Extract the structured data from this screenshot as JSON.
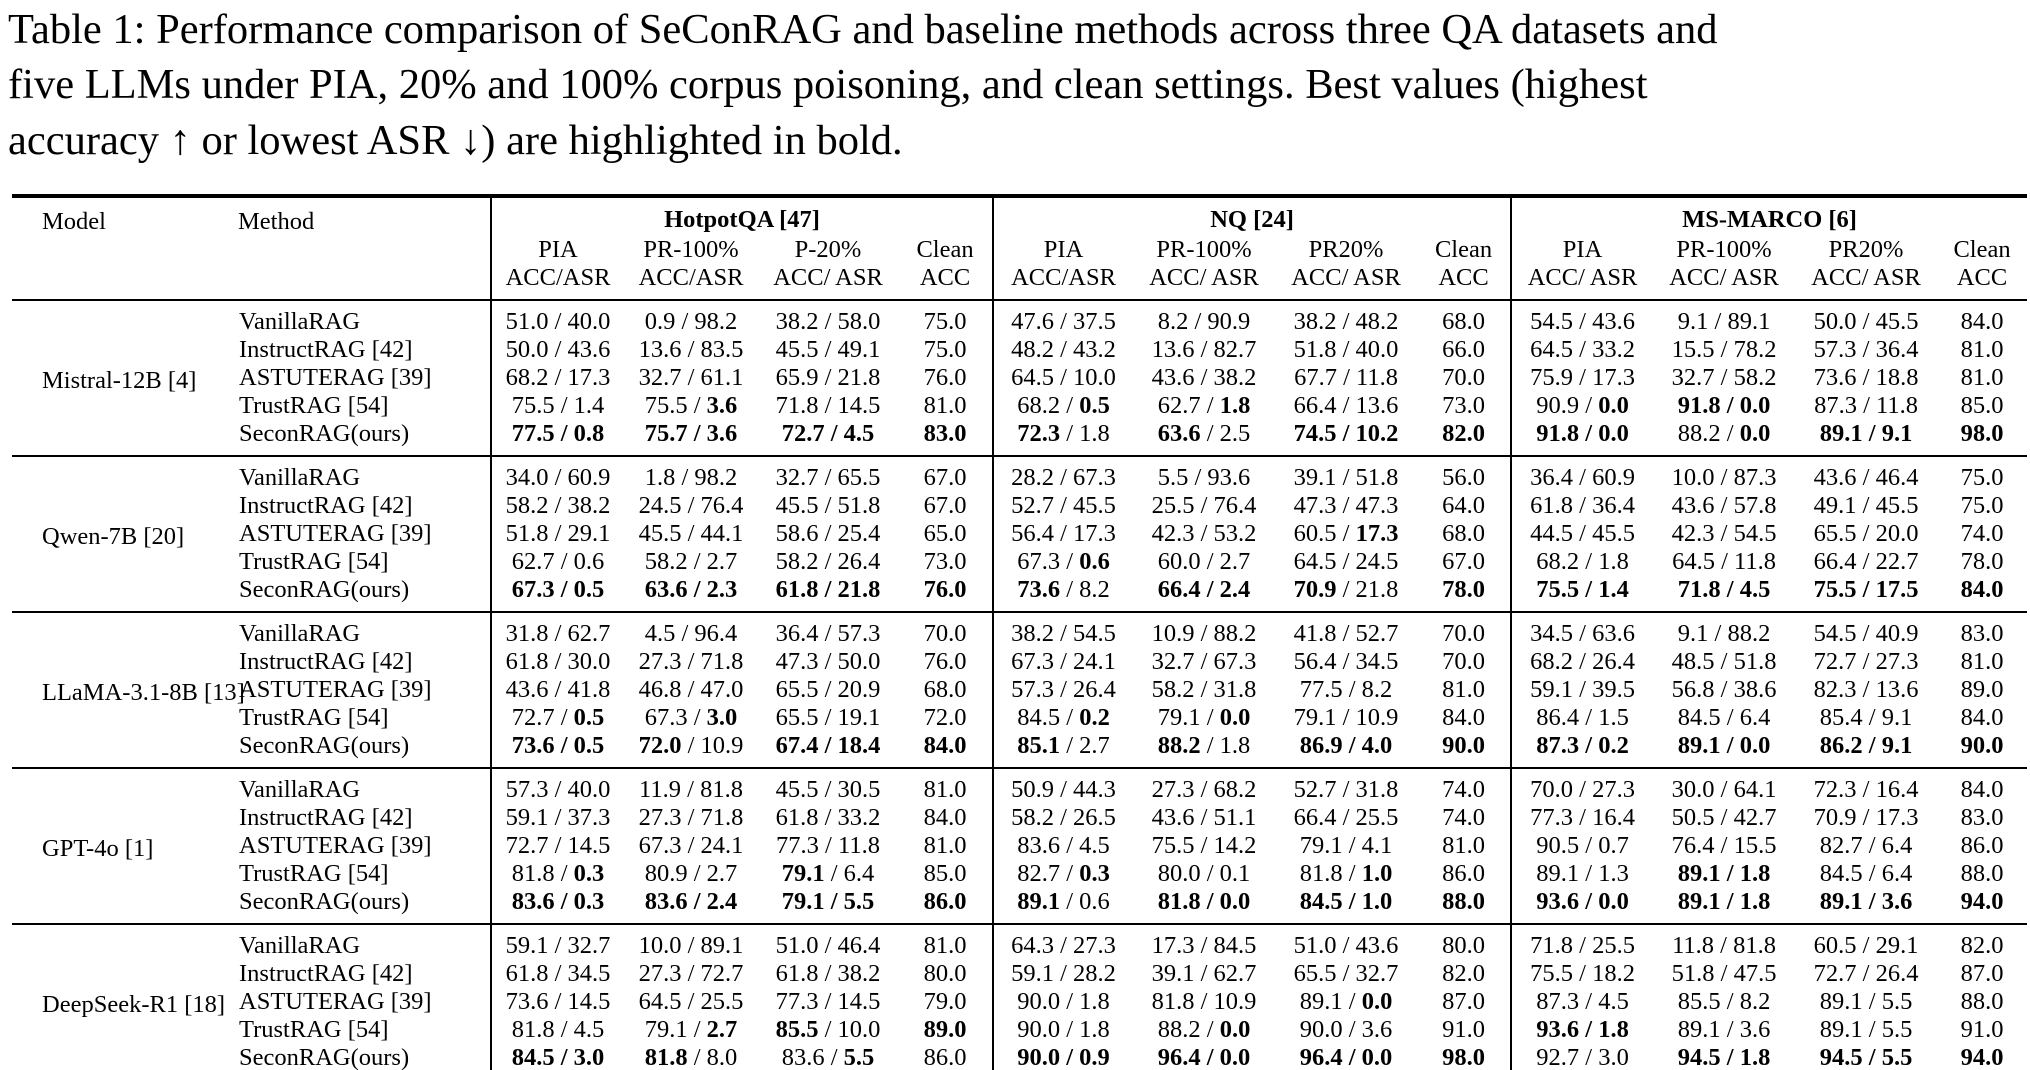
{
  "caption": {
    "line1": "Table 1: Performance comparison of SeConRAG and baseline methods across three QA datasets and",
    "line2": "five LLMs under PIA, 20% and 100% corpus poisoning, and clean settings. Best values (highest",
    "line3": "accuracy ↑ or lowest ASR ↓) are highlighted in bold."
  },
  "table": {
    "model_header": "Model",
    "method_header": "Method",
    "datasets": [
      {
        "name": "HotpotQA [47]",
        "cols": [
          [
            "PIA",
            "ACC/ASR"
          ],
          [
            "PR-100%",
            "ACC/ASR"
          ],
          [
            "P-20%",
            "ACC/ ASR"
          ],
          [
            "Clean",
            "ACC"
          ]
        ]
      },
      {
        "name": "NQ [24]",
        "cols": [
          [
            "PIA",
            "ACC/ASR"
          ],
          [
            "PR-100%",
            "ACC/ ASR"
          ],
          [
            "PR20%",
            "ACC/ ASR"
          ],
          [
            "Clean",
            "ACC"
          ]
        ]
      },
      {
        "name": "MS-MARCO [6]",
        "cols": [
          [
            "PIA",
            "ACC/ ASR"
          ],
          [
            "PR-100%",
            "ACC/ ASR"
          ],
          [
            "PR20%",
            "ACC/ ASR"
          ],
          [
            "Clean",
            "ACC"
          ]
        ]
      }
    ],
    "blocks": [
      {
        "model": "Mistral-12B [4]",
        "rows": [
          {
            "method": "VanillaRAG",
            "cells": [
              "51.0 / 40.0",
              "0.9 / 98.2",
              "38.2 / 58.0",
              "75.0",
              "47.6 / 37.5",
              "8.2 / 90.9",
              "38.2 / 48.2",
              "68.0",
              "54.5 / 43.6",
              "9.1 / 89.1",
              "50.0 / 45.5",
              "84.0"
            ]
          },
          {
            "method": "InstructRAG [42]",
            "cells": [
              "50.0 / 43.6",
              "13.6 / 83.5",
              "45.5 / 49.1",
              "75.0",
              "48.2 / 43.2",
              "13.6 / 82.7",
              "51.8 / 40.0",
              "66.0",
              "64.5 / 33.2",
              "15.5 / 78.2",
              "57.3 / 36.4",
              "81.0"
            ]
          },
          {
            "method": "ASTUTERAG [39]",
            "cells": [
              "68.2 / 17.3",
              "32.7 / 61.1",
              "65.9 / 21.8",
              "76.0",
              "64.5 / 10.0",
              "43.6 / 38.2",
              "67.7 / 11.8",
              "70.0",
              "75.9 / 17.3",
              "32.7 / 58.2",
              "73.6 / 18.8",
              "81.0"
            ]
          },
          {
            "method": "TrustRAG [54]",
            "cells": [
              "75.5 / 1.4",
              "75.5 / *3.6*",
              "71.8 / 14.5",
              "81.0",
              "68.2 / *0.5*",
              "62.7 / *1.8*",
              "66.4 / 13.6",
              "73.0",
              "90.9 / *0.0*",
              "*91.8 / 0.0*",
              "87.3 / 11.8",
              "85.0"
            ]
          },
          {
            "method": "SeconRAG(ours)",
            "cells": [
              "*77.5 / 0.8*",
              "*75.7 / 3.6*",
              "*72.7 / 4.5*",
              "*83.0*",
              "*72.3* / 1.8",
              "*63.6* / 2.5",
              "*74.5 / 10.2*",
              "*82.0*",
              "*91.8 / 0.0*",
              "88.2 / *0.0*",
              "*89.1 / 9.1*",
              "*98.0*"
            ]
          }
        ]
      },
      {
        "model": "Qwen-7B [20]",
        "rows": [
          {
            "method": "VanillaRAG",
            "cells": [
              "34.0 / 60.9",
              "1.8 / 98.2",
              "32.7 / 65.5",
              "67.0",
              "28.2 / 67.3",
              "5.5 / 93.6",
              "39.1 / 51.8",
              "56.0",
              "36.4 / 60.9",
              "10.0 / 87.3",
              "43.6 / 46.4",
              "75.0"
            ]
          },
          {
            "method": "InstructRAG [42]",
            "cells": [
              "58.2 / 38.2",
              "24.5 / 76.4",
              "45.5 / 51.8",
              "67.0",
              "52.7 / 45.5",
              "25.5 / 76.4",
              "47.3 / 47.3",
              "64.0",
              "61.8 / 36.4",
              "43.6 / 57.8",
              "49.1 / 45.5",
              "75.0"
            ]
          },
          {
            "method": "ASTUTERAG [39]",
            "cells": [
              "51.8 / 29.1",
              "45.5 / 44.1",
              "58.6 / 25.4",
              "65.0",
              "56.4 / 17.3",
              "42.3 / 53.2",
              "60.5 / *17.3*",
              "68.0",
              "44.5 / 45.5",
              "42.3 / 54.5",
              "65.5 / 20.0",
              "74.0"
            ]
          },
          {
            "method": "TrustRAG [54]",
            "cells": [
              "62.7 / 0.6",
              "58.2 / 2.7",
              "58.2 / 26.4",
              "73.0",
              "67.3 / *0.6*",
              "60.0 / 2.7",
              "64.5 / 24.5",
              "67.0",
              "68.2 / 1.8",
              "64.5 / 11.8",
              "66.4 / 22.7",
              "78.0"
            ]
          },
          {
            "method": "SeconRAG(ours)",
            "cells": [
              "*67.3 / 0.5*",
              "*63.6 / 2.3*",
              "*61.8 / 21.8*",
              "*76.0*",
              "*73.6* / 8.2",
              "*66.4 / 2.4*",
              "*70.9* / 21.8",
              "*78.0*",
              "*75.5 / 1.4*",
              "*71.8 / 4.5*",
              "*75.5 / 17.5*",
              "*84.0*"
            ]
          }
        ]
      },
      {
        "model": "LLaMA-3.1-8B [13]",
        "rows": [
          {
            "method": "VanillaRAG",
            "cells": [
              "31.8 / 62.7",
              "4.5 / 96.4",
              "36.4 / 57.3",
              "70.0",
              "38.2 / 54.5",
              "10.9 / 88.2",
              "41.8 / 52.7",
              "70.0",
              "34.5 / 63.6",
              "9.1 / 88.2",
              "54.5 / 40.9",
              "83.0"
            ]
          },
          {
            "method": "InstructRAG [42]",
            "cells": [
              "61.8 / 30.0",
              "27.3 / 71.8",
              "47.3 / 50.0",
              "76.0",
              "67.3 / 24.1",
              "32.7 / 67.3",
              "56.4 / 34.5",
              "70.0",
              "68.2 / 26.4",
              "48.5 / 51.8",
              "72.7 / 27.3",
              "81.0"
            ]
          },
          {
            "method": "ASTUTERAG [39]",
            "cells": [
              "43.6 / 41.8",
              "46.8 / 47.0",
              "65.5 / 20.9",
              "68.0",
              "57.3 / 26.4",
              "58.2 / 31.8",
              "77.5 / 8.2",
              "81.0",
              "59.1 / 39.5",
              "56.8 / 38.6",
              "82.3 / 13.6",
              "89.0"
            ]
          },
          {
            "method": "TrustRAG [54]",
            "cells": [
              "72.7 / *0.5*",
              "67.3 / *3.0*",
              "65.5 / 19.1",
              "72.0",
              "84.5 / *0.2*",
              "79.1 / *0.0*",
              "79.1 / 10.9",
              "84.0",
              "86.4 / 1.5",
              "84.5 / 6.4",
              "85.4 / 9.1",
              "84.0"
            ]
          },
          {
            "method": "SeconRAG(ours)",
            "cells": [
              "*73.6 / 0.5*",
              "*72.0* / 10.9",
              "*67.4 / 18.4*",
              "*84.0*",
              "*85.1* / 2.7",
              "*88.2* / 1.8",
              "*86.9 / 4.0*",
              "*90.0*",
              "*87.3 / 0.2*",
              "*89.1 / 0.0*",
              "*86.2 / 9.1*",
              "*90.0*"
            ]
          }
        ]
      },
      {
        "model": "GPT-4o [1]",
        "rows": [
          {
            "method": "VanillaRAG",
            "cells": [
              "57.3 / 40.0",
              "11.9 / 81.8",
              "45.5 / 30.5",
              "81.0",
              "50.9 / 44.3",
              "27.3 / 68.2",
              "52.7 / 31.8",
              "74.0",
              "70.0 / 27.3",
              "30.0 / 64.1",
              "72.3 / 16.4",
              "84.0"
            ]
          },
          {
            "method": "InstructRAG [42]",
            "cells": [
              "59.1 / 37.3",
              "27.3 / 71.8",
              "61.8 / 33.2",
              "84.0",
              "58.2 / 26.5",
              "43.6 / 51.1",
              "66.4 / 25.5",
              "74.0",
              "77.3 / 16.4",
              "50.5 / 42.7",
              "70.9 / 17.3",
              "83.0"
            ]
          },
          {
            "method": "ASTUTERAG [39]",
            "cells": [
              "72.7 / 14.5",
              "67.3 / 24.1",
              "77.3 / 11.8",
              "81.0",
              "83.6 / 4.5",
              "75.5 / 14.2",
              "79.1 / 4.1",
              "81.0",
              "90.5 / 0.7",
              "76.4 / 15.5",
              "82.7 / 6.4",
              "86.0"
            ]
          },
          {
            "method": "TrustRAG [54]",
            "cells": [
              "81.8 / *0.3*",
              "80.9 / 2.7",
              "*79.1* / 6.4",
              "85.0",
              "82.7 / *0.3*",
              "80.0 / 0.1",
              "81.8 / *1.0*",
              "86.0",
              "89.1 / 1.3",
              "*89.1 / 1.8*",
              "84.5 / 6.4",
              "88.0"
            ]
          },
          {
            "method": "SeconRAG(ours)",
            "cells": [
              "*83.6 / 0.3*",
              "*83.6 / 2.4*",
              "*79.1 / 5.5*",
              "*86.0*",
              "*89.1* / 0.6",
              "*81.8 / 0.0*",
              "*84.5 / 1.0*",
              "*88.0*",
              "*93.6 / 0.0*",
              "*89.1 / 1.8*",
              "*89.1 / 3.6*",
              "*94.0*"
            ]
          }
        ]
      },
      {
        "model": "DeepSeek-R1 [18]",
        "rows": [
          {
            "method": "VanillaRAG",
            "cells": [
              "59.1 / 32.7",
              "10.0 / 89.1",
              "51.0 / 46.4",
              "81.0",
              "64.3 / 27.3",
              "17.3 / 84.5",
              "51.0 / 43.6",
              "80.0",
              "71.8 / 25.5",
              "11.8 / 81.8",
              "60.5 / 29.1",
              "82.0"
            ]
          },
          {
            "method": "InstructRAG [42]",
            "cells": [
              "61.8 / 34.5",
              "27.3 / 72.7",
              "61.8 / 38.2",
              "80.0",
              "59.1 / 28.2",
              "39.1 / 62.7",
              "65.5 / 32.7",
              "82.0",
              "75.5 / 18.2",
              "51.8 / 47.5",
              "72.7 / 26.4",
              "87.0"
            ]
          },
          {
            "method": "ASTUTERAG [39]",
            "cells": [
              "73.6 / 14.5",
              "64.5 / 25.5",
              "77.3 / 14.5",
              "79.0",
              "90.0 / 1.8",
              "81.8 / 10.9",
              "89.1 / *0.0*",
              "87.0",
              "87.3 / 4.5",
              "85.5 / 8.2",
              "89.1 / 5.5",
              "88.0"
            ]
          },
          {
            "method": "TrustRAG [54]",
            "cells": [
              "81.8 / 4.5",
              "79.1 / *2.7*",
              "*85.5* / 10.0",
              "*89.0*",
              "90.0 / 1.8",
              "88.2 / *0.0*",
              "90.0 / 3.6",
              "91.0",
              "*93.6 / 1.8*",
              "89.1 / 3.6",
              "89.1 / 5.5",
              "91.0"
            ]
          },
          {
            "method": "SeconRAG(ours)",
            "cells": [
              "*84.5 / 3.0*",
              "*81.8* / 8.0",
              "83.6 / *5.5*",
              "86.0",
              "*90.0 / 0.9*",
              "*96.4 / 0.0*",
              "*96.4 / 0.0*",
              "*98.0*",
              "92.7 / 3.0",
              "*94.5 / 1.8*",
              "*94.5 / 5.5*",
              "*94.0*"
            ]
          }
        ]
      }
    ]
  }
}
